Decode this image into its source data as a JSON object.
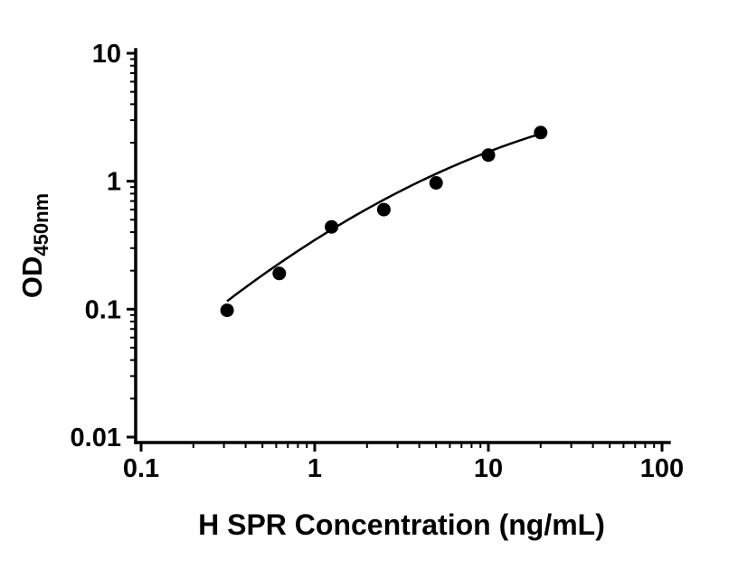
{
  "page": {
    "background": "#ffffff"
  },
  "chart_data": {
    "type": "scatter",
    "title": "",
    "xlabel": "H SPR Concentration (ng/mL)",
    "ylabel_main": "OD",
    "ylabel_sub": "450nm",
    "x_scale": "log",
    "y_scale": "log",
    "xlim": [
      0.1,
      100
    ],
    "ylim": [
      0.01,
      10
    ],
    "x_ticks": [
      {
        "value": 0.1,
        "label": "0.1"
      },
      {
        "value": 1,
        "label": "1"
      },
      {
        "value": 10,
        "label": "10"
      },
      {
        "value": 100,
        "label": "100"
      }
    ],
    "y_ticks": [
      {
        "value": 0.01,
        "label": "0.01"
      },
      {
        "value": 0.1,
        "label": "0.1"
      },
      {
        "value": 1,
        "label": "1"
      },
      {
        "value": 10,
        "label": "10"
      }
    ],
    "points": {
      "x": [
        0.313,
        0.625,
        1.25,
        2.5,
        5,
        10,
        20
      ],
      "y": [
        0.098,
        0.19,
        0.44,
        0.6,
        0.97,
        1.6,
        2.4
      ]
    },
    "fit_curve": {
      "type": "quadratic-loglog",
      "coefficients": {
        "a": -0.46,
        "b": 0.86,
        "c": -0.17
      },
      "log_x_range": [
        -0.505,
        1.301
      ]
    },
    "marker_color": "#000000",
    "line_color": "#000000",
    "axis_color": "#000000",
    "grid": false,
    "legend": false
  }
}
